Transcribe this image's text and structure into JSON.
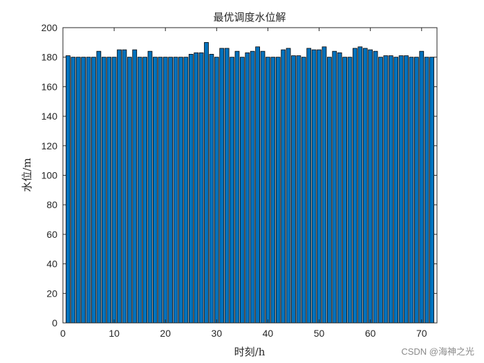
{
  "chart_data": {
    "type": "bar",
    "title": "最优调度水位解",
    "xlabel": "时刻/h",
    "ylabel": "水位/m",
    "xlim": [
      0,
      73
    ],
    "ylim": [
      0,
      200
    ],
    "xticks": [
      0,
      10,
      20,
      30,
      40,
      50,
      60,
      70
    ],
    "yticks": [
      0,
      20,
      40,
      60,
      80,
      100,
      120,
      140,
      160,
      180,
      200
    ],
    "bar_color": "#0072BD",
    "edge_color": "#000000",
    "grid": false,
    "legend": false,
    "x": [
      1,
      2,
      3,
      4,
      5,
      6,
      7,
      8,
      9,
      10,
      11,
      12,
      13,
      14,
      15,
      16,
      17,
      18,
      19,
      20,
      21,
      22,
      23,
      24,
      25,
      26,
      27,
      28,
      29,
      30,
      31,
      32,
      33,
      34,
      35,
      36,
      37,
      38,
      39,
      40,
      41,
      42,
      43,
      44,
      45,
      46,
      47,
      48,
      49,
      50,
      51,
      52,
      53,
      54,
      55,
      56,
      57,
      58,
      59,
      60,
      61,
      62,
      63,
      64,
      65,
      66,
      67,
      68,
      69,
      70,
      71,
      72
    ],
    "values": [
      181,
      180,
      180,
      180,
      180,
      180,
      184,
      180,
      180,
      180,
      185,
      185,
      180,
      185,
      180,
      180,
      184,
      180,
      180,
      180,
      180,
      180,
      180,
      180,
      182,
      183,
      183,
      190,
      182,
      180,
      186,
      186,
      180,
      184,
      180,
      183,
      184,
      187,
      184,
      180,
      180,
      180,
      185,
      186,
      181,
      181,
      180,
      186,
      185,
      185,
      187,
      180,
      184,
      183,
      180,
      180,
      186,
      187,
      186,
      185,
      184,
      180,
      181,
      181,
      180,
      181,
      181,
      180,
      180,
      184,
      180,
      180
    ]
  },
  "watermark": "CSDN @海神之光"
}
